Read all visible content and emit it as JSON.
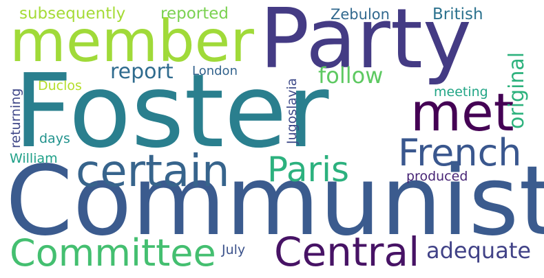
{
  "words": [
    {
      "id": "foster",
      "text": "Foster",
      "color": "#2a7f8e"
    },
    {
      "id": "communist",
      "text": "Communist",
      "color": "#3b5b8e"
    },
    {
      "id": "party",
      "text": "Party",
      "color": "#443b84"
    },
    {
      "id": "member",
      "text": "member",
      "color": "#a0da39"
    },
    {
      "id": "met",
      "text": "met",
      "color": "#440154"
    },
    {
      "id": "certain",
      "text": "certain",
      "color": "#37648c"
    },
    {
      "id": "paris",
      "text": "Paris",
      "color": "#2cb17e"
    },
    {
      "id": "french",
      "text": "French",
      "color": "#3a578e"
    },
    {
      "id": "committee",
      "text": "Committee",
      "color": "#44bf70"
    },
    {
      "id": "central",
      "text": "Central",
      "color": "#471365"
    },
    {
      "id": "report",
      "text": "report",
      "color": "#2f6b8e"
    },
    {
      "id": "follow",
      "text": "follow",
      "color": "#5ec962"
    },
    {
      "id": "original",
      "text": "original",
      "color": "#2db27d"
    },
    {
      "id": "adequate",
      "text": "adequate",
      "color": "#414287"
    },
    {
      "id": "subsequently",
      "text": "subsequently",
      "color": "#a5db36"
    },
    {
      "id": "reported",
      "text": "reported",
      "color": "#7ad151"
    },
    {
      "id": "zebulon",
      "text": "Zebulon",
      "color": "#31688e"
    },
    {
      "id": "british",
      "text": "British",
      "color": "#2c728e"
    },
    {
      "id": "london",
      "text": "London",
      "color": "#33638d"
    },
    {
      "id": "duclos",
      "text": "Duclos",
      "color": "#b5de2b"
    },
    {
      "id": "meeting",
      "text": "meeting",
      "color": "#21a585"
    },
    {
      "id": "jugoslavia",
      "text": "Jugoslavia",
      "color": "#3e4a89"
    },
    {
      "id": "returning",
      "text": "returning",
      "color": "#3f4788"
    },
    {
      "id": "days",
      "text": "days",
      "color": "#20928c"
    },
    {
      "id": "william",
      "text": "William",
      "color": "#1fa088"
    },
    {
      "id": "produced",
      "text": "produced",
      "color": "#482576"
    },
    {
      "id": "july",
      "text": "July",
      "color": "#3b528b"
    }
  ]
}
